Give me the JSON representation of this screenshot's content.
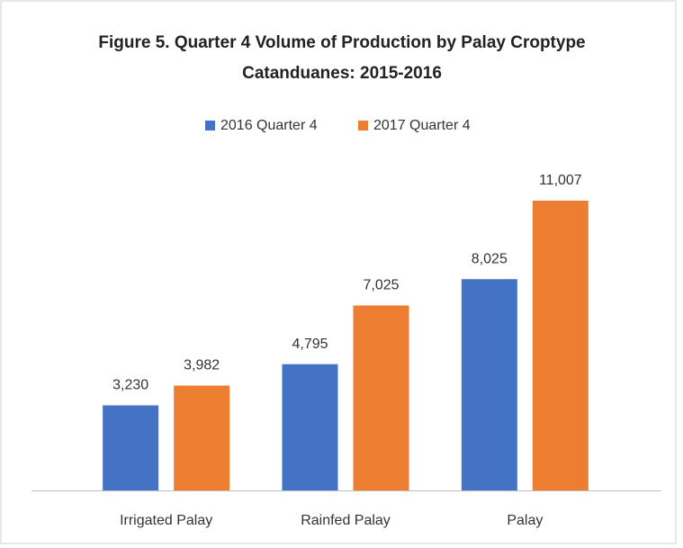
{
  "chart_data": {
    "type": "bar",
    "title": "Figure 5. Quarter 4 Volume of Production by Palay Croptype",
    "subtitle": "Catanduanes: 2015-2016",
    "categories": [
      "Irrigated Palay",
      "Rainfed Palay",
      "Palay"
    ],
    "series": [
      {
        "name": "2016 Quarter 4",
        "color": "#4472c4",
        "values": [
          3230,
          4795,
          8025
        ],
        "value_labels": [
          "3,230",
          "4,795",
          "8,025"
        ]
      },
      {
        "name": "2017 Quarter 4",
        "color": "#ed7d31",
        "values": [
          3982,
          7025,
          11007
        ],
        "value_labels": [
          "3,982",
          "7,025",
          "11,007"
        ]
      }
    ],
    "legend": "top"
  }
}
